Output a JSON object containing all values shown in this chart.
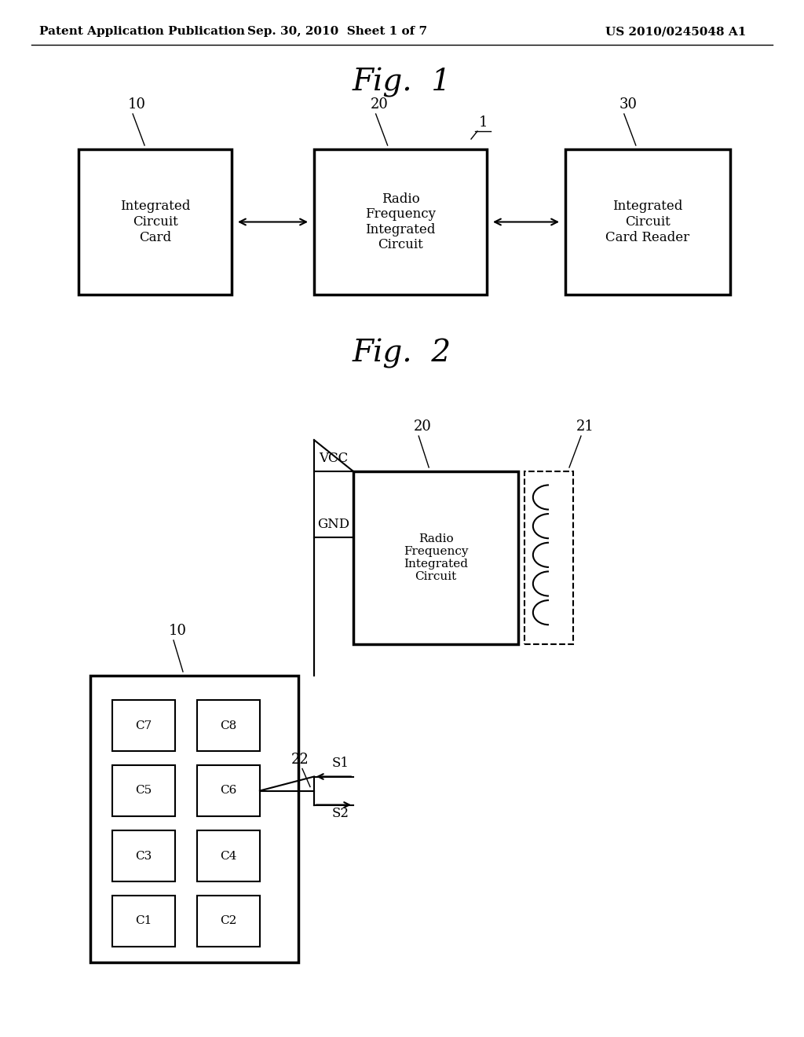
{
  "background_color": "#ffffff",
  "header_left": "Patent Application Publication",
  "header_center": "Sep. 30, 2010  Sheet 1 of 7",
  "header_right": "US 2010/0245048 A1"
}
